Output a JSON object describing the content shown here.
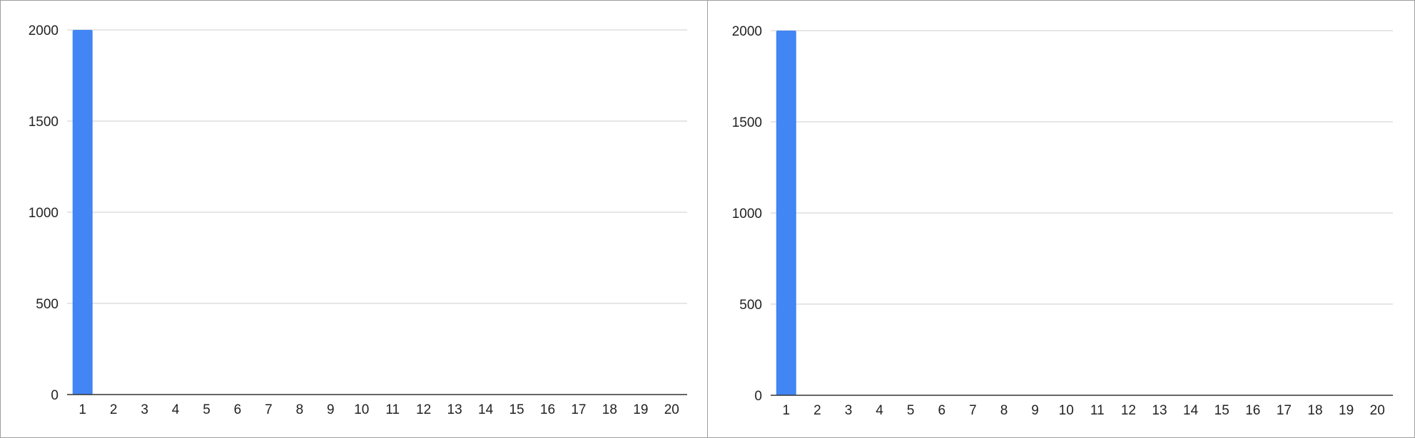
{
  "chart_data": [
    {
      "type": "bar",
      "categories": [
        "1",
        "2",
        "3",
        "4",
        "5",
        "6",
        "7",
        "8",
        "9",
        "10",
        "11",
        "12",
        "13",
        "14",
        "15",
        "16",
        "17",
        "18",
        "19",
        "20"
      ],
      "values": [
        2000,
        0,
        0,
        0,
        0,
        0,
        0,
        0,
        0,
        0,
        0,
        0,
        0,
        0,
        0,
        0,
        0,
        0,
        0,
        0
      ],
      "y_ticks": [
        "0",
        "500",
        "1000",
        "1500",
        "2000"
      ],
      "ylim": [
        0,
        2000
      ],
      "title": "",
      "xlabel": "",
      "ylabel": "",
      "grid": true,
      "legend": "none",
      "bar_color": "#4285f4",
      "grid_color": "#cccccc",
      "axis_color": "#333333"
    },
    {
      "type": "bar",
      "categories": [
        "1",
        "2",
        "3",
        "4",
        "5",
        "6",
        "7",
        "8",
        "9",
        "10",
        "11",
        "12",
        "13",
        "14",
        "15",
        "16",
        "17",
        "18",
        "19",
        "20"
      ],
      "values": [
        2000,
        0,
        0,
        0,
        0,
        0,
        0,
        0,
        0,
        0,
        0,
        0,
        0,
        0,
        0,
        0,
        0,
        0,
        0,
        0
      ],
      "y_ticks": [
        "0",
        "500",
        "1000",
        "1500",
        "2000"
      ],
      "ylim": [
        0,
        2000
      ],
      "title": "",
      "xlabel": "",
      "ylabel": "",
      "grid": true,
      "legend": "none",
      "bar_color": "#4285f4",
      "grid_color": "#cccccc",
      "axis_color": "#333333"
    }
  ]
}
